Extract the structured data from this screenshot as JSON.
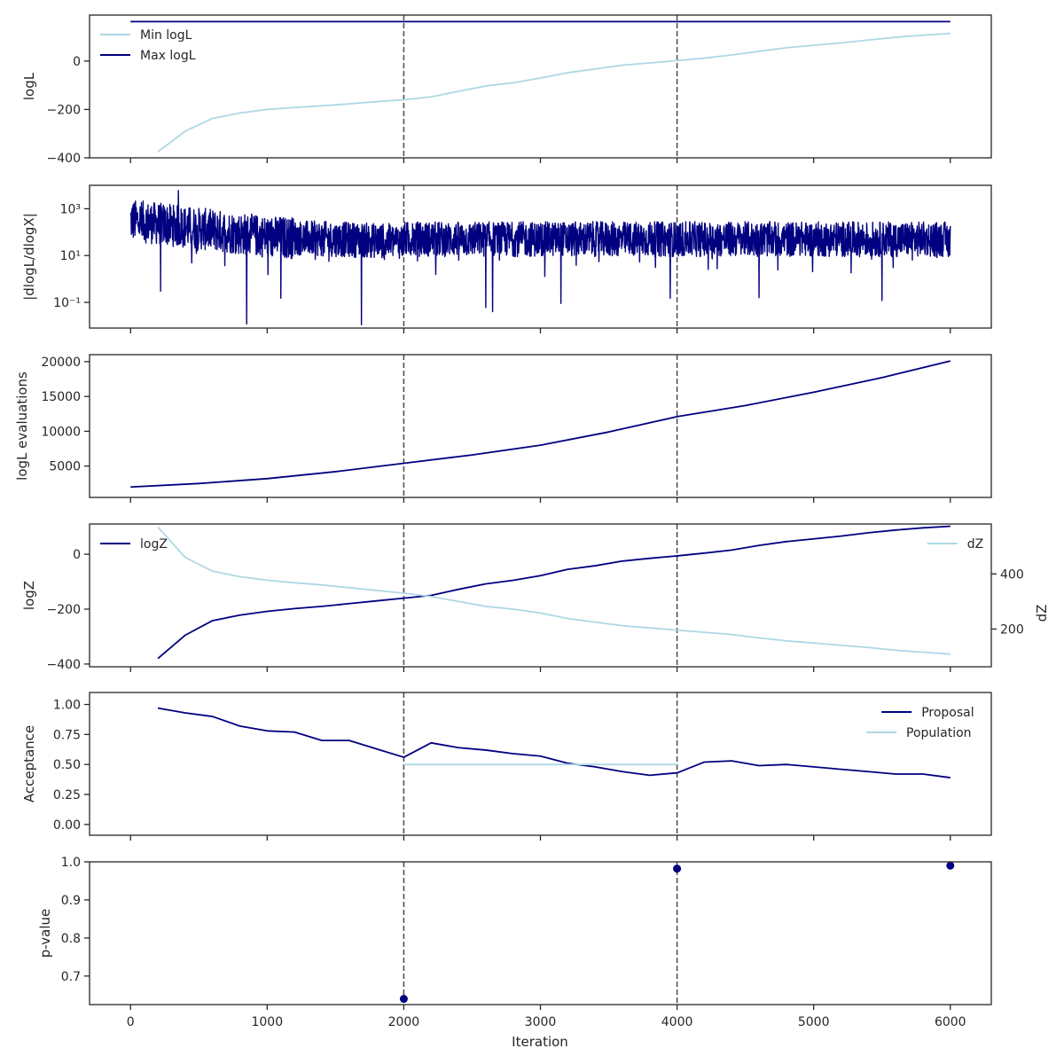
{
  "colors": {
    "dark": "#000080",
    "light": "#add8e6",
    "vline": "#4a4a4a",
    "axis": "#262626"
  },
  "figure": {
    "xlabel": "Iteration",
    "xlim": [
      -300,
      6300
    ],
    "xticks": [
      0,
      1000,
      2000,
      3000,
      4000,
      5000,
      6000
    ],
    "xtick_labels": [
      "0",
      "1000",
      "2000",
      "3000",
      "4000",
      "5000",
      "6000"
    ],
    "vlines": [
      2000,
      4000
    ]
  },
  "chart_data": [
    {
      "type": "line",
      "ylabel": "logL",
      "ylim": [
        -400,
        190
      ],
      "yticks": [
        -400,
        -200,
        0
      ],
      "ytick_labels": [
        "−400",
        "−200",
        "0"
      ],
      "legend_position": "top-left",
      "series": [
        {
          "name": "Min logL",
          "color": "light",
          "legend": true,
          "x": [
            200,
            400,
            600,
            800,
            1000,
            1200,
            1400,
            1600,
            1800,
            2000,
            2200,
            2400,
            2600,
            2800,
            3000,
            3200,
            3400,
            3600,
            3800,
            4000,
            4200,
            4400,
            4600,
            4800,
            5000,
            5200,
            5400,
            5600,
            5800,
            6000
          ],
          "y": [
            -375,
            -290,
            -237,
            -215,
            -200,
            -192,
            -185,
            -177,
            -168,
            -160,
            -148,
            -125,
            -103,
            -90,
            -70,
            -48,
            -33,
            -17,
            -8,
            2,
            12,
            25,
            40,
            55,
            65,
            75,
            87,
            98,
            107,
            114
          ]
        },
        {
          "name": "Max logL",
          "color": "dark",
          "legend": true,
          "x": [
            0,
            6000
          ],
          "y": [
            163,
            163
          ]
        }
      ]
    },
    {
      "type": "line",
      "ylabel": "|dlogL/dlogX|",
      "yscale": "log",
      "ylim": [
        0.008,
        10000
      ],
      "yticks": [
        0.1,
        10,
        1000
      ],
      "ytick_labels": [
        "10⁻¹",
        "10¹",
        "10³"
      ],
      "series": [
        {
          "name": "",
          "color": "dark",
          "legend": false,
          "generated": "noisy-gradient",
          "x_range": [
            0,
            6000
          ]
        }
      ]
    },
    {
      "type": "line",
      "ylabel": "logL evaluations",
      "ylim": [
        500,
        21000
      ],
      "yticks": [
        5000,
        10000,
        15000,
        20000
      ],
      "ytick_labels": [
        "5000",
        "10000",
        "15000",
        "20000"
      ],
      "series": [
        {
          "name": "",
          "color": "dark",
          "legend": false,
          "x": [
            0,
            500,
            1000,
            1500,
            2000,
            2500,
            3000,
            3500,
            4000,
            4500,
            5000,
            5500,
            6000
          ],
          "y": [
            2000,
            2500,
            3200,
            4200,
            5400,
            6600,
            8000,
            9900,
            12100,
            13700,
            15600,
            17700,
            20100
          ]
        }
      ]
    },
    {
      "type": "line",
      "ylabel": "logZ",
      "ylim": [
        -410,
        110
      ],
      "yticks": [
        -400,
        -200,
        0
      ],
      "ytick_labels": [
        "−400",
        "−200",
        "0"
      ],
      "legend_position": "top-left",
      "series": [
        {
          "name": "logZ",
          "color": "dark",
          "legend": true,
          "x": [
            200,
            400,
            600,
            800,
            1000,
            1200,
            1400,
            1600,
            1800,
            2000,
            2200,
            2400,
            2600,
            2800,
            3000,
            3200,
            3400,
            3600,
            3800,
            4000,
            4200,
            4400,
            4600,
            4800,
            5000,
            5200,
            5400,
            5600,
            5800,
            6000
          ],
          "y": [
            -380,
            -295,
            -242,
            -222,
            -208,
            -198,
            -190,
            -180,
            -170,
            -160,
            -150,
            -128,
            -108,
            -95,
            -78,
            -55,
            -42,
            -25,
            -15,
            -6,
            4,
            15,
            32,
            46,
            56,
            66,
            78,
            88,
            96,
            102
          ]
        }
      ],
      "twin": {
        "ylabel": "dZ",
        "ylim": [
          63,
          581
        ],
        "yticks": [
          200,
          400
        ],
        "ytick_labels": [
          "200",
          "400"
        ],
        "legend_position": "top-right",
        "series": [
          {
            "name": "dZ",
            "color": "light",
            "legend": true,
            "x": [
              200,
              400,
              600,
              800,
              1000,
              1200,
              1400,
              1600,
              1800,
              2000,
              2200,
              2400,
              2600,
              2800,
              3000,
              3200,
              3400,
              3600,
              3800,
              4000,
              4200,
              4400,
              4600,
              4800,
              5000,
              5200,
              5400,
              5600,
              5800,
              6000
            ],
            "y": [
              570,
              460,
              410,
              390,
              377,
              368,
              360,
              350,
              340,
              330,
              318,
              300,
              282,
              272,
              258,
              238,
              225,
              212,
              204,
              196,
              188,
              180,
              168,
              157,
              149,
              141,
              133,
              123,
              116,
              109
            ]
          }
        ]
      }
    },
    {
      "type": "line",
      "ylabel": "Acceptance",
      "ylim": [
        -0.09,
        1.1
      ],
      "yticks": [
        0,
        0.25,
        0.5,
        0.75,
        1.0
      ],
      "ytick_labels": [
        "0.00",
        "0.25",
        "0.50",
        "0.75",
        "1.00"
      ],
      "legend_position": "top-right",
      "series": [
        {
          "name": "Proposal",
          "color": "dark",
          "legend": true,
          "x": [
            200,
            400,
            600,
            800,
            1000,
            1200,
            1400,
            1600,
            1800,
            2000,
            2200,
            2400,
            2600,
            2800,
            3000,
            3200,
            3400,
            3600,
            3800,
            4000,
            4200,
            4400,
            4600,
            4800,
            5000,
            5200,
            5400,
            5600,
            5800,
            6000
          ],
          "y": [
            0.97,
            0.93,
            0.9,
            0.82,
            0.78,
            0.77,
            0.7,
            0.7,
            0.63,
            0.56,
            0.68,
            0.64,
            0.62,
            0.59,
            0.57,
            0.51,
            0.48,
            0.44,
            0.41,
            0.43,
            0.52,
            0.53,
            0.49,
            0.5,
            0.48,
            0.46,
            0.44,
            0.42,
            0.42,
            0.39
          ]
        },
        {
          "name": "Population",
          "color": "light",
          "legend": true,
          "x": [
            2000,
            4000
          ],
          "y": [
            0.5,
            0.5
          ]
        }
      ]
    },
    {
      "type": "scatter",
      "ylabel": "p-value",
      "ylim": [
        0.625,
        1.0
      ],
      "yticks": [
        0.7,
        0.8,
        0.9,
        1.0
      ],
      "ytick_labels": [
        "0.7",
        "0.8",
        "0.9",
        "1.0"
      ],
      "series": [
        {
          "name": "",
          "color": "dark",
          "legend": false,
          "x": [
            2000,
            4000,
            6000
          ],
          "y": [
            0.64,
            0.982,
            0.99
          ]
        }
      ]
    }
  ]
}
